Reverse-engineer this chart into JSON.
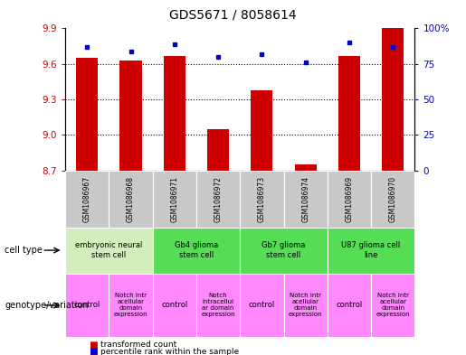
{
  "title": "GDS5671 / 8058614",
  "samples": [
    "GSM1086967",
    "GSM1086968",
    "GSM1086971",
    "GSM1086972",
    "GSM1086973",
    "GSM1086974",
    "GSM1086969",
    "GSM1086970"
  ],
  "transformed_counts": [
    9.65,
    9.63,
    9.67,
    9.05,
    9.38,
    8.75,
    9.67,
    9.9
  ],
  "percentile_ranks": [
    87,
    84,
    89,
    80,
    82,
    76,
    90,
    87
  ],
  "y_min": 8.7,
  "y_max": 9.9,
  "y_ticks": [
    8.7,
    9.0,
    9.3,
    9.6,
    9.9
  ],
  "y_right_ticks": [
    0,
    25,
    50,
    75,
    100
  ],
  "y_right_tick_labels": [
    "0",
    "25",
    "50",
    "75",
    "100%"
  ],
  "cell_types": [
    {
      "label": "embryonic neural\nstem cell",
      "start": 0,
      "end": 2,
      "color": "#d4edbc"
    },
    {
      "label": "Gb4 glioma\nstem cell",
      "start": 2,
      "end": 4,
      "color": "#55dd55"
    },
    {
      "label": "Gb7 glioma\nstem cell",
      "start": 4,
      "end": 6,
      "color": "#55dd55"
    },
    {
      "label": "U87 glioma cell\nline",
      "start": 6,
      "end": 8,
      "color": "#55dd55"
    }
  ],
  "genotype_variations": [
    {
      "label": "control",
      "start": 0,
      "end": 1
    },
    {
      "label": "Notch intr\nacellular\ndomain\nexpression",
      "start": 1,
      "end": 2
    },
    {
      "label": "control",
      "start": 2,
      "end": 3
    },
    {
      "label": "Notch\nintracellul\nar domain\nexpression",
      "start": 3,
      "end": 4
    },
    {
      "label": "control",
      "start": 4,
      "end": 5
    },
    {
      "label": "Notch intr\nacellular\ndomain\nexpression",
      "start": 5,
      "end": 6
    },
    {
      "label": "control",
      "start": 6,
      "end": 7
    },
    {
      "label": "Notch intr\nacellular\ndomain\nexpression",
      "start": 7,
      "end": 8
    }
  ],
  "bar_color": "#cc0000",
  "dot_color": "#0000cc",
  "bar_width": 0.5,
  "sample_cell_color": "#c8c8c8",
  "tick_color_left": "#cc0000",
  "tick_color_right": "#0000cc",
  "genotype_color": "#ff88ff",
  "cell_type_label_fontsize": 6,
  "genotype_label_fontsize": 5,
  "sample_label_fontsize": 5.5,
  "title_fontsize": 10
}
